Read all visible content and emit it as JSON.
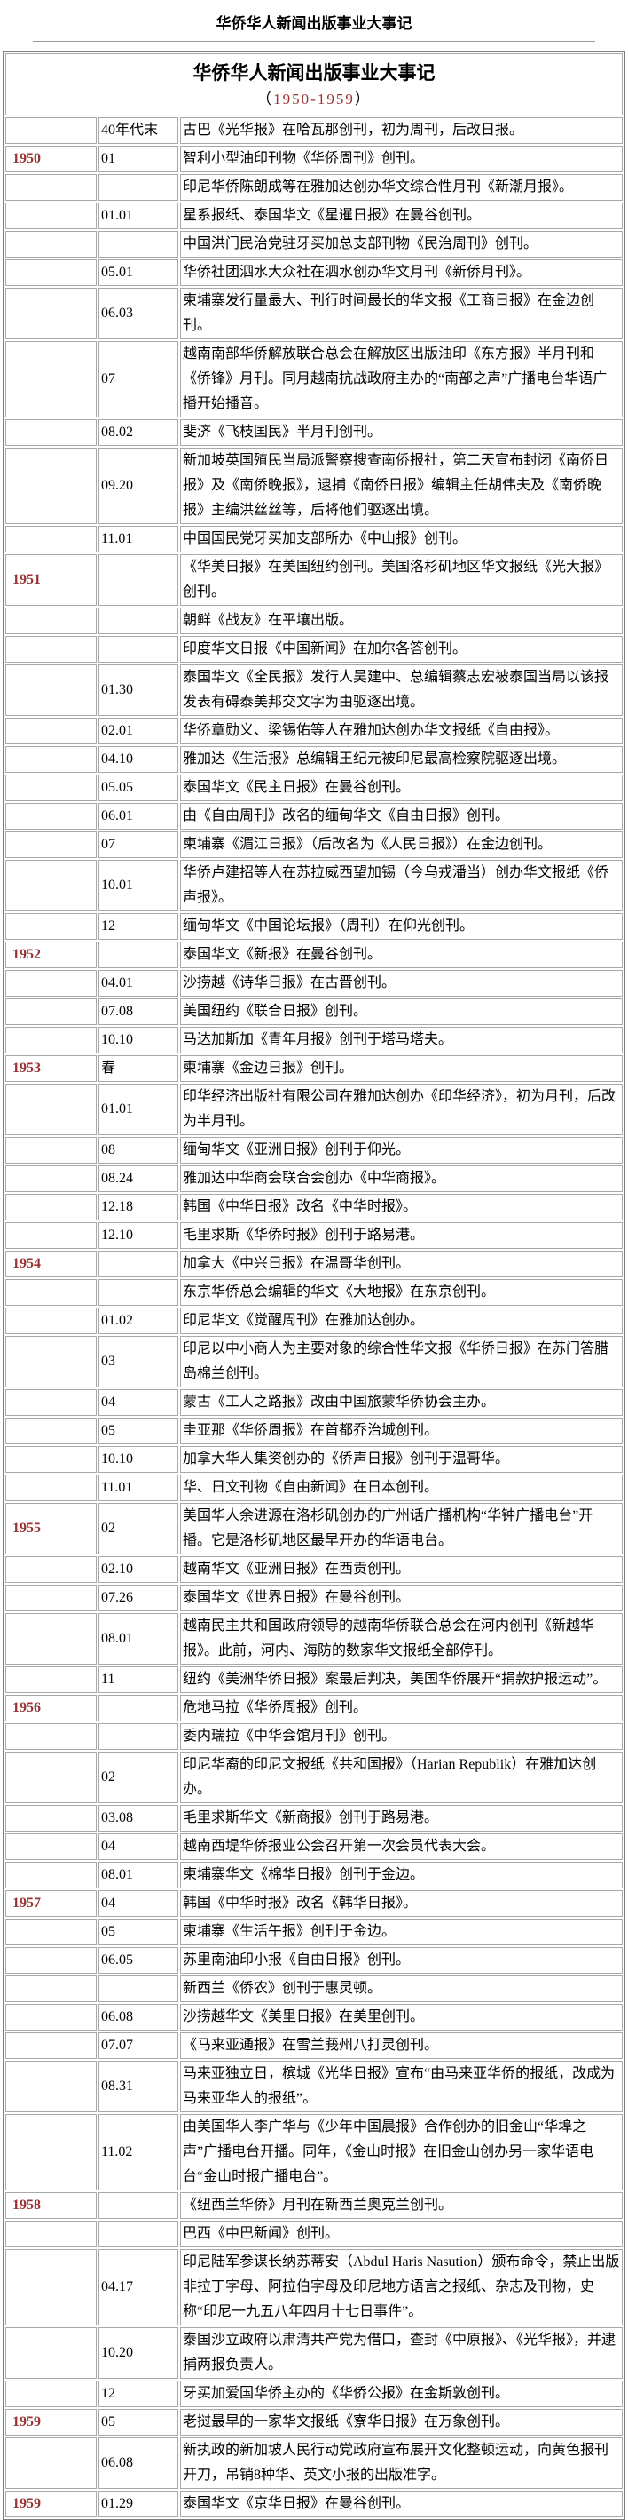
{
  "page": {
    "title": "华侨华人新闻出版事业大事记"
  },
  "table": {
    "title": "华侨华人新闻出版事业大事记",
    "subtitle_open": "（",
    "subtitle_years": "1950-1959",
    "subtitle_close": "）",
    "colors": {
      "year_text": "#993333",
      "border": "#a8a8a8"
    },
    "rows": [
      {
        "year": "",
        "date": "40年代末",
        "text": "古巴《光华报》在哈瓦那创刊，初为周刊，后改日报。"
      },
      {
        "year": "1950",
        "date": "01",
        "text": "智利小型油印刊物《华侨周刊》创刊。"
      },
      {
        "year": "",
        "date": "",
        "text": "印尼华侨陈朗成等在雅加达创办华文综合性月刊《新潮月报》。"
      },
      {
        "year": "",
        "date": "01.01",
        "text": "星系报纸、泰国华文《星暹日报》在曼谷创刊。"
      },
      {
        "year": "",
        "date": "",
        "text": "中国洪门民治党驻牙买加总支部刊物《民治周刊》创刊。"
      },
      {
        "year": "",
        "date": "05.01",
        "text": "华侨社团泗水大众社在泗水创办华文月刊《新侨月刊》。"
      },
      {
        "year": "",
        "date": "06.03",
        "text": "柬埔寨发行量最大、刊行时间最长的华文报《工商日报》在金边创刊。"
      },
      {
        "year": "",
        "date": "07",
        "text": "越南南部华侨解放联合总会在解放区出版油印《东方报》半月刊和《侨锋》月刊。同月越南抗战政府主办的“南部之声”广播电台华语广播开始播音。"
      },
      {
        "year": "",
        "date": "08.02",
        "text": "斐济《飞枝国民》半月刊创刊。"
      },
      {
        "year": "",
        "date": "09.20",
        "text": "新加坡英国殖民当局派警察搜查南侨报社，第二天宣布封闭《南侨日报》及《南侨晚报》，逮捕《南侨日报》编辑主任胡伟夫及《南侨晚报》主编洪丝丝等，后将他们驱逐出境。"
      },
      {
        "year": "",
        "date": "11.01",
        "text": "中国国民党牙买加支部所办《中山报》创刊。"
      },
      {
        "year": "1951",
        "date": "",
        "text": "《华美日报》在美国纽约创刊。美国洛杉矶地区华文报纸《光大报》创刊。"
      },
      {
        "year": "",
        "date": "",
        "text": "朝鲜《战友》在平壤出版。"
      },
      {
        "year": "",
        "date": "",
        "text": "印度华文日报《中国新闻》在加尔各答创刊。"
      },
      {
        "year": "",
        "date": "01.30",
        "text": "泰国华文《全民报》发行人吴建中、总编辑蔡志宏被泰国当局以该报发表有碍泰美邦交文字为由驱逐出境。"
      },
      {
        "year": "",
        "date": "02.01",
        "text": "华侨章勋义、梁锡佑等人在雅加达创办华文报纸《自由报》。"
      },
      {
        "year": "",
        "date": "04.10",
        "text": "雅加达《生活报》总编辑王纪元被印尼最高检察院驱逐出境。"
      },
      {
        "year": "",
        "date": "05.05",
        "text": "泰国华文《民主日报》在曼谷创刊。"
      },
      {
        "year": "",
        "date": "06.01",
        "text": "由《自由周刊》改名的缅甸华文《自由日报》创刊。"
      },
      {
        "year": "",
        "date": "07",
        "text": "柬埔寨《湄江日报》（后改名为《人民日报》）在金边创刊。"
      },
      {
        "year": "",
        "date": "10.01",
        "text": "华侨卢建招等人在苏拉威西望加锡（今乌戎潘当）创办华文报纸《侨声报》。"
      },
      {
        "year": "",
        "date": "12",
        "text": "缅甸华文《中国论坛报》（周刊）在仰光创刊。"
      },
      {
        "year": "1952",
        "date": "",
        "text": "泰国华文《新报》在曼谷创刊。"
      },
      {
        "year": "",
        "date": "04.01",
        "text": "沙捞越《诗华日报》在古晋创刊。"
      },
      {
        "year": "",
        "date": "07.08",
        "text": "美国纽约《联合日报》创刊。"
      },
      {
        "year": "",
        "date": "10.10",
        "text": "马达加斯加《青年月报》创刊于塔马塔夫。"
      },
      {
        "year": "1953",
        "date": "春",
        "text": "柬埔寨《金边日报》创刊。"
      },
      {
        "year": "",
        "date": "01.01",
        "text": "印华经济出版社有限公司在雅加达创办《印华经济》，初为月刊，后改为半月刊。"
      },
      {
        "year": "",
        "date": "08",
        "text": "缅甸华文《亚洲日报》创刊于仰光。"
      },
      {
        "year": "",
        "date": "08.24",
        "text": "雅加达中华商会联合会创办《中华商报》。"
      },
      {
        "year": "",
        "date": "12.18",
        "text": "韩国《中华日报》改名《中华时报》。"
      },
      {
        "year": "",
        "date": "12.10",
        "text": "毛里求斯《华侨时报》创刊于路易港。"
      },
      {
        "year": "1954",
        "date": "",
        "text": "加拿大《中兴日报》在温哥华创刊。"
      },
      {
        "year": "",
        "date": "",
        "text": "东京华侨总会编辑的华文《大地报》在东京创刊。"
      },
      {
        "year": "",
        "date": "01.02",
        "text": "印尼华文《觉醒周刊》在雅加达创办。"
      },
      {
        "year": "",
        "date": "03",
        "text": "印尼以中小商人为主要对象的综合性华文报《华侨日报》在苏门答腊岛棉兰创刊。"
      },
      {
        "year": "",
        "date": "04",
        "text": "蒙古《工人之路报》改由中国旅蒙华侨协会主办。"
      },
      {
        "year": "",
        "date": "05",
        "text": "圭亚那《华侨周报》在首都乔治城创刊。"
      },
      {
        "year": "",
        "date": "10.10",
        "text": "加拿大华人集资创办的《侨声日报》创刊于温哥华。"
      },
      {
        "year": "",
        "date": "11.01",
        "text": "华、日文刊物《自由新闻》在日本创刊。"
      },
      {
        "year": "1955",
        "date": "02",
        "text": "美国华人余进源在洛杉矶创办的广州话广播机构“华钟广播电台”开播。它是洛杉矶地区最早开办的华语电台。"
      },
      {
        "year": "",
        "date": "02.10",
        "text": "越南华文《亚洲日报》在西贡创刊。"
      },
      {
        "year": "",
        "date": "07.26",
        "text": "泰国华文《世界日报》在曼谷创刊。"
      },
      {
        "year": "",
        "date": "08.01",
        "text": "越南民主共和国政府领导的越南华侨联合总会在河内创刊《新越华报》。此前，河内、海防的数家华文报纸全部停刊。"
      },
      {
        "year": "",
        "date": "11",
        "text": "纽约《美洲华侨日报》案最后判决，美国华侨展开“捐款护报运动”。"
      },
      {
        "year": "1956",
        "date": "",
        "text": "危地马拉《华侨周报》创刊。"
      },
      {
        "year": "",
        "date": "",
        "text": "委内瑞拉《中华会馆月刊》创刊。"
      },
      {
        "year": "",
        "date": "02",
        "text": "印尼华裔的印尼文报纸《共和国报》（Harian Republik）在雅加达创办。"
      },
      {
        "year": "",
        "date": "03.08",
        "text": "毛里求斯华文《新商报》创刊于路易港。"
      },
      {
        "year": "",
        "date": "04",
        "text": "越南西堤华侨报业公会召开第一次会员代表大会。"
      },
      {
        "year": "",
        "date": "08.01",
        "text": "柬埔寨华文《棉华日报》创刊于金边。"
      },
      {
        "year": "1957",
        "date": "04",
        "text": "韩国《中华时报》改名《韩华日报》。"
      },
      {
        "year": "",
        "date": "05",
        "text": "柬埔寨《生活午报》创刊于金边。"
      },
      {
        "year": "",
        "date": "06.05",
        "text": "苏里南油印小报《自由日报》创刊。"
      },
      {
        "year": "",
        "date": "",
        "text": "新西兰《侨农》创刊于惠灵顿。"
      },
      {
        "year": "",
        "date": "06.08",
        "text": "沙捞越华文《美里日报》在美里创刊。"
      },
      {
        "year": "",
        "date": "07.07",
        "text": "《马来亚通报》在雪兰莪州八打灵创刊。"
      },
      {
        "year": "",
        "date": "08.31",
        "text": "马来亚独立日，槟城《光华日报》宣布“由马来亚华侨的报纸，改成为马来亚华人的报纸”。"
      },
      {
        "year": "",
        "date": "11.02",
        "text": "由美国华人李广华与《少年中国晨报》合作创办的旧金山“华埠之声”广播电台开播。同年，《金山时报》在旧金山创办另一家华语电台“金山时报广播电台”。"
      },
      {
        "year": "1958",
        "date": "",
        "text": "《纽西兰华侨》月刊在新西兰奥克兰创刊。"
      },
      {
        "year": "",
        "date": "",
        "text": "巴西《中巴新闻》创刊。"
      },
      {
        "year": "",
        "date": "04.17",
        "text": "印尼陆军参谋长纳苏蒂安（Abdul Haris Nasution）颁布命令，禁止出版非拉丁字母、阿拉伯字母及印尼地方语言之报纸、杂志及刊物，史称“印尼一九五八年四月十七日事件”。"
      },
      {
        "year": "",
        "date": "10.20",
        "text": "泰国沙立政府以肃清共产党为借口，查封《中原报》、《光华报》，并逮捕两报负责人。"
      },
      {
        "year": "",
        "date": "12",
        "text": "牙买加爱国华侨主办的《华侨公报》在金斯敦创刊。"
      },
      {
        "year": "1959",
        "date": "05",
        "text": "老挝最早的一家华文报纸《寮华日报》在万象创刊。"
      },
      {
        "year": "",
        "date": "06.08",
        "text": "新执政的新加坡人民行动党政府宣布展开文化整顿运动，向黄色报刊开刀，吊销8种华、英文小报的出版准字。"
      },
      {
        "year": "1959",
        "date": "01.29",
        "text": "泰国华文《京华日报》在曼谷创刊。"
      }
    ]
  }
}
